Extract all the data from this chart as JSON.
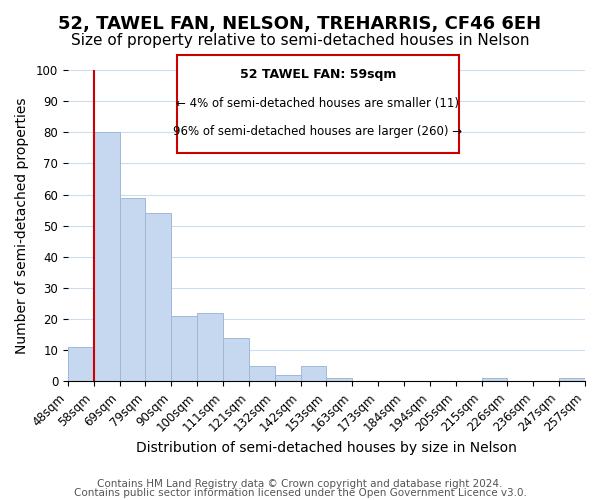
{
  "title": "52, TAWEL FAN, NELSON, TREHARRIS, CF46 6EH",
  "subtitle": "Size of property relative to semi-detached houses in Nelson",
  "xlabel": "Distribution of semi-detached houses by size in Nelson",
  "ylabel": "Number of semi-detached properties",
  "bin_labels": [
    "48sqm",
    "58sqm",
    "69sqm",
    "79sqm",
    "90sqm",
    "100sqm",
    "111sqm",
    "121sqm",
    "132sqm",
    "142sqm",
    "153sqm",
    "163sqm",
    "173sqm",
    "184sqm",
    "194sqm",
    "205sqm",
    "215sqm",
    "226sqm",
    "236sqm",
    "247sqm",
    "257sqm"
  ],
  "bar_heights": [
    11,
    80,
    59,
    54,
    21,
    22,
    14,
    5,
    2,
    5,
    1,
    0,
    0,
    0,
    0,
    0,
    1,
    0,
    0,
    1
  ],
  "bar_color": "#c5d8f0",
  "bar_edge_color": "#a0b8d8",
  "vline_x": 1,
  "vline_color": "#cc0000",
  "annotation_title": "52 TAWEL FAN: 59sqm",
  "annotation_line1": "← 4% of semi-detached houses are smaller (11)",
  "annotation_line2": "96% of semi-detached houses are larger (260) →",
  "box_color": "#cc0000",
  "ylim": [
    0,
    100
  ],
  "yticks": [
    0,
    10,
    20,
    30,
    40,
    50,
    60,
    70,
    80,
    90,
    100
  ],
  "footer1": "Contains HM Land Registry data © Crown copyright and database right 2024.",
  "footer2": "Contains public sector information licensed under the Open Government Licence v3.0.",
  "title_fontsize": 13,
  "subtitle_fontsize": 11,
  "axis_label_fontsize": 10,
  "tick_fontsize": 8.5,
  "footer_fontsize": 7.5
}
